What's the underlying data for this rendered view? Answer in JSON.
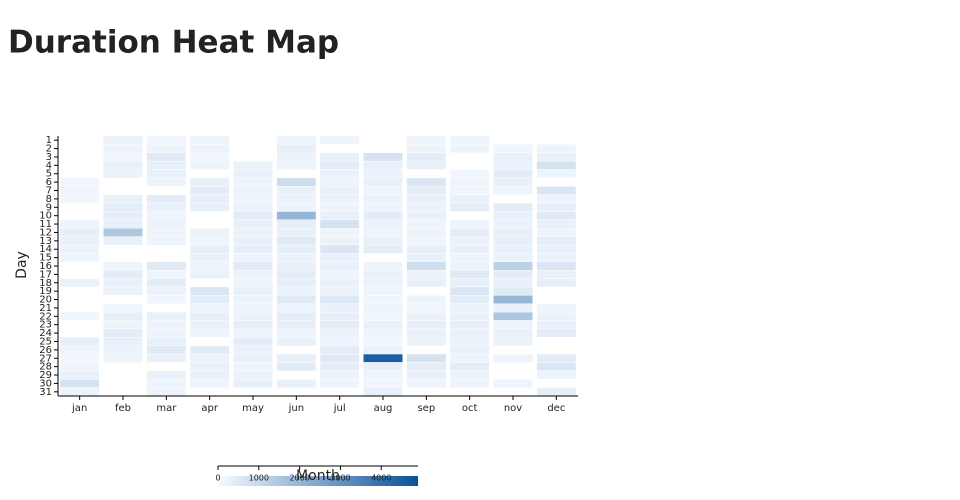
{
  "chart_data": {
    "type": "heatmap",
    "title": "Duration Heat Map",
    "xlabel": "Month",
    "ylabel": "Day",
    "categories": [
      "jan",
      "feb",
      "mar",
      "apr",
      "may",
      "jun",
      "jul",
      "aug",
      "sep",
      "oct",
      "nov",
      "dec"
    ],
    "y_categories": [
      1,
      2,
      3,
      4,
      5,
      6,
      7,
      8,
      9,
      10,
      11,
      12,
      13,
      14,
      15,
      16,
      17,
      18,
      19,
      20,
      21,
      22,
      23,
      24,
      25,
      26,
      27,
      28,
      29,
      30,
      31
    ],
    "z": [
      [
        null,
        null,
        null,
        null,
        null,
        150,
        200,
        150,
        null,
        null,
        200,
        350,
        300,
        250,
        200,
        null,
        null,
        250,
        null,
        null,
        null,
        150,
        null,
        null,
        350,
        200,
        150,
        200,
        300,
        700,
        200
      ],
      [
        250,
        200,
        150,
        300,
        250,
        null,
        null,
        300,
        400,
        350,
        300,
        1500,
        300,
        null,
        null,
        200,
        400,
        300,
        250,
        null,
        150,
        350,
        200,
        400,
        300,
        250,
        200,
        null,
        null,
        null,
        null
      ],
      [
        150,
        200,
        500,
        350,
        300,
        200,
        null,
        400,
        300,
        200,
        250,
        200,
        200,
        null,
        null,
        500,
        200,
        400,
        250,
        150,
        null,
        300,
        250,
        200,
        300,
        500,
        300,
        null,
        300,
        200,
        200
      ],
      [
        200,
        250,
        150,
        200,
        null,
        300,
        400,
        350,
        300,
        null,
        null,
        250,
        200,
        350,
        300,
        200,
        250,
        null,
        600,
        400,
        200,
        350,
        300,
        200,
        null,
        450,
        250,
        300,
        300,
        200,
        null
      ],
      [
        null,
        null,
        null,
        250,
        300,
        200,
        250,
        200,
        250,
        400,
        300,
        250,
        300,
        350,
        200,
        450,
        250,
        200,
        300,
        250,
        200,
        250,
        350,
        200,
        400,
        250,
        300,
        200,
        250,
        300,
        null
      ],
      [
        200,
        350,
        250,
        200,
        null,
        900,
        300,
        250,
        200,
        2000,
        350,
        300,
        500,
        350,
        250,
        300,
        400,
        350,
        250,
        500,
        200,
        400,
        350,
        200,
        300,
        null,
        300,
        450,
        null,
        300,
        null
      ],
      [
        200,
        null,
        300,
        400,
        250,
        200,
        300,
        250,
        200,
        300,
        700,
        200,
        250,
        600,
        300,
        300,
        200,
        300,
        250,
        550,
        300,
        350,
        400,
        250,
        200,
        400,
        500,
        350,
        250,
        200,
        null
      ],
      [
        null,
        null,
        700,
        300,
        250,
        300,
        200,
        250,
        200,
        400,
        250,
        200,
        300,
        400,
        null,
        200,
        300,
        250,
        200,
        150,
        200,
        150,
        300,
        200,
        150,
        250,
        4500,
        300,
        200,
        150,
        300
      ],
      [
        200,
        200,
        400,
        300,
        null,
        600,
        400,
        300,
        250,
        300,
        200,
        250,
        200,
        350,
        300,
        800,
        250,
        300,
        null,
        200,
        150,
        300,
        350,
        300,
        250,
        null,
        700,
        400,
        300,
        200,
        null
      ],
      [
        200,
        200,
        null,
        null,
        150,
        200,
        150,
        300,
        400,
        null,
        200,
        400,
        250,
        300,
        200,
        250,
        500,
        300,
        600,
        400,
        250,
        300,
        350,
        300,
        250,
        300,
        200,
        400,
        250,
        200,
        null
      ],
      [
        null,
        150,
        300,
        250,
        400,
        300,
        200,
        null,
        400,
        300,
        250,
        350,
        350,
        300,
        250,
        1200,
        400,
        300,
        450,
        2000,
        300,
        1500,
        200,
        300,
        250,
        null,
        200,
        null,
        null,
        200,
        null
      ],
      [
        null,
        200,
        300,
        700,
        200,
        null,
        600,
        200,
        350,
        500,
        300,
        200,
        400,
        300,
        250,
        600,
        300,
        350,
        null,
        null,
        200,
        250,
        300,
        400,
        null,
        null,
        400,
        600,
        200,
        null,
        350
      ]
    ],
    "colorscale": [
      "#f7fbff",
      "#08519c"
    ],
    "zlim": [
      0,
      4900
    ],
    "colorbar_ticks": [
      0,
      1000,
      2000,
      3000,
      4000
    ]
  }
}
